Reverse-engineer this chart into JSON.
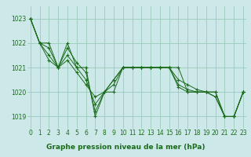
{
  "series": [
    [
      1023.0,
      1022.0,
      1022.0,
      1021.0,
      1022.0,
      1021.0,
      1021.0,
      1019.0,
      1020.0,
      1020.0,
      1021.0,
      1021.0,
      1021.0,
      1021.0,
      1021.0,
      1021.0,
      1021.0,
      1020.0,
      1020.0,
      1020.0,
      1020.0,
      1019.0,
      1019.0,
      1020.0
    ],
    [
      1023.0,
      1022.0,
      1021.8,
      1021.0,
      1021.8,
      1021.2,
      1020.8,
      1019.2,
      1020.0,
      1020.3,
      1021.0,
      1021.0,
      1021.0,
      1021.0,
      1021.0,
      1021.0,
      1020.5,
      1020.3,
      1020.1,
      1020.0,
      1020.0,
      1019.0,
      1019.0,
      1020.0
    ],
    [
      1023.0,
      1022.0,
      1021.5,
      1021.0,
      1021.5,
      1021.0,
      1020.5,
      1019.5,
      1020.0,
      1020.5,
      1021.0,
      1021.0,
      1021.0,
      1021.0,
      1021.0,
      1021.0,
      1020.3,
      1020.1,
      1020.0,
      1020.0,
      1019.8,
      1019.0,
      1019.0,
      1020.0
    ],
    [
      1023.0,
      1022.0,
      1021.3,
      1021.0,
      1021.3,
      1020.8,
      1020.3,
      1019.8,
      1020.0,
      1020.5,
      1021.0,
      1021.0,
      1021.0,
      1021.0,
      1021.0,
      1021.0,
      1020.2,
      1020.0,
      1020.0,
      1020.0,
      1019.8,
      1019.0,
      1019.0,
      1020.0
    ]
  ],
  "x": [
    0,
    1,
    2,
    3,
    4,
    5,
    6,
    7,
    8,
    9,
    10,
    11,
    12,
    13,
    14,
    15,
    16,
    17,
    18,
    19,
    20,
    21,
    22,
    23
  ],
  "ylim": [
    1018.5,
    1023.5
  ],
  "xlim": [
    -0.3,
    23.3
  ],
  "line_color": "#1a6b1a",
  "bg_color": "#cce8e8",
  "grid_color": "#99ccbb",
  "label_text": "Graphe pression niveau de la mer (hPa)",
  "label_color": "#1a6b1a",
  "label_bg": "#99ccbb",
  "yticks": [
    1019,
    1020,
    1021,
    1022,
    1023
  ],
  "xticks": [
    0,
    1,
    2,
    3,
    4,
    5,
    6,
    7,
    8,
    9,
    10,
    11,
    12,
    13,
    14,
    15,
    16,
    17,
    18,
    19,
    20,
    21,
    22,
    23
  ],
  "tick_fontsize": 5.5,
  "label_fontsize": 6.5
}
